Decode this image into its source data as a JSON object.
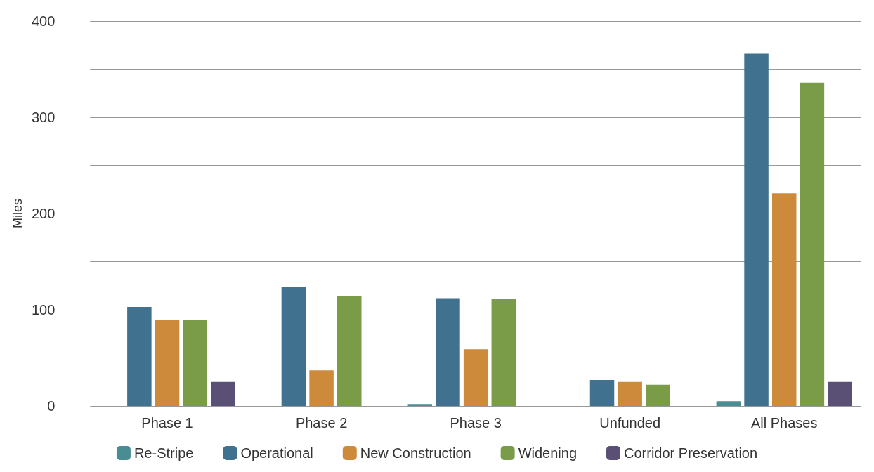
{
  "chart_data": {
    "type": "bar",
    "ylabel": "Miles",
    "categories": [
      "Phase 1",
      "Phase 2",
      "Phase 3",
      "Unfunded",
      "All Phases"
    ],
    "series": [
      {
        "name": "Re-Stripe",
        "color": "#4a8c93",
        "values": [
          0,
          0,
          2,
          0,
          5
        ]
      },
      {
        "name": "Operational",
        "color": "#40728f",
        "values": [
          103,
          124,
          112,
          27,
          366
        ]
      },
      {
        "name": "New Construction",
        "color": "#cc8a3a",
        "values": [
          89,
          37,
          59,
          25,
          221
        ]
      },
      {
        "name": "Widening",
        "color": "#7a9c48",
        "values": [
          89,
          114,
          111,
          22,
          336
        ]
      },
      {
        "name": "Corridor Preservation",
        "color": "#5a5075",
        "values": [
          25,
          0,
          0,
          0,
          25
        ]
      }
    ],
    "ylim": [
      0,
      400
    ],
    "yticks": [
      0,
      {
        "value": 50,
        "label": null
      },
      100,
      {
        "value": 150,
        "label": null
      },
      200,
      {
        "value": 250,
        "label": null
      },
      300,
      {
        "value": 350,
        "label": null
      },
      400
    ],
    "grid": "y",
    "legend": "bottom"
  }
}
